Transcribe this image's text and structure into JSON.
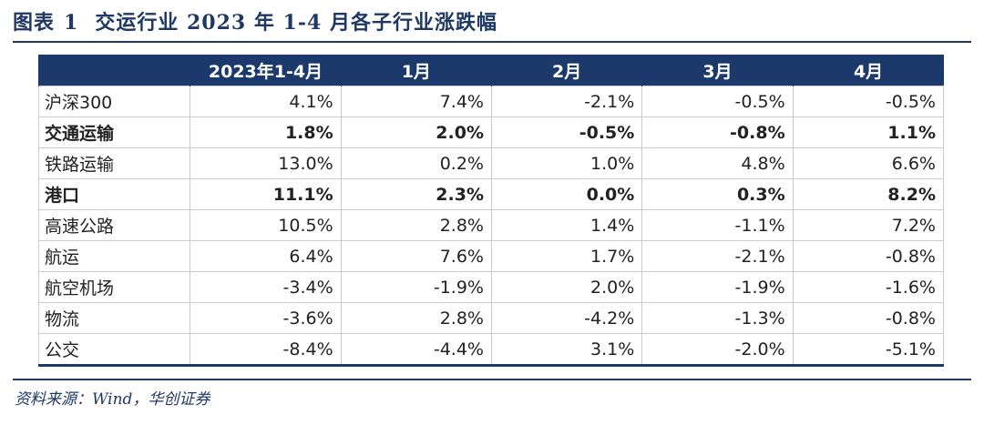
{
  "figure": {
    "label": "图表",
    "number": "1",
    "title": "交运行业 2023 年 1-4 月各子行业涨跌幅"
  },
  "table": {
    "columns": [
      "",
      "2023年1-4月",
      "1月",
      "2月",
      "3月",
      "4月"
    ],
    "rows": [
      {
        "name": "沪深300",
        "bold": false,
        "values": [
          "4.1%",
          "7.4%",
          "-2.1%",
          "-0.5%",
          "-0.5%"
        ]
      },
      {
        "name": "交通运输",
        "bold": true,
        "values": [
          "1.8%",
          "2.0%",
          "-0.5%",
          "-0.8%",
          "1.1%"
        ]
      },
      {
        "name": "铁路运输",
        "bold": false,
        "values": [
          "13.0%",
          "0.2%",
          "1.0%",
          "4.8%",
          "6.6%"
        ]
      },
      {
        "name": "港口",
        "bold": true,
        "values": [
          "11.1%",
          "2.3%",
          "0.0%",
          "0.3%",
          "8.2%"
        ]
      },
      {
        "name": "高速公路",
        "bold": false,
        "values": [
          "10.5%",
          "2.8%",
          "1.4%",
          "-1.1%",
          "7.2%"
        ]
      },
      {
        "name": "航运",
        "bold": false,
        "values": [
          "6.4%",
          "7.6%",
          "1.7%",
          "-2.1%",
          "-0.8%"
        ]
      },
      {
        "name": "航空机场",
        "bold": false,
        "values": [
          "-3.4%",
          "-1.9%",
          "2.0%",
          "-1.9%",
          "-1.6%"
        ]
      },
      {
        "name": "物流",
        "bold": false,
        "values": [
          "-3.6%",
          "2.8%",
          "-4.2%",
          "-1.3%",
          "-0.8%"
        ]
      },
      {
        "name": "公交",
        "bold": false,
        "values": [
          "-8.4%",
          "-4.4%",
          "3.1%",
          "-2.0%",
          "-5.1%"
        ]
      }
    ]
  },
  "source": "资料来源：Wind，华创证券",
  "colors": {
    "header_bg": "#1b3a6b",
    "title_text": "#1f3864"
  }
}
